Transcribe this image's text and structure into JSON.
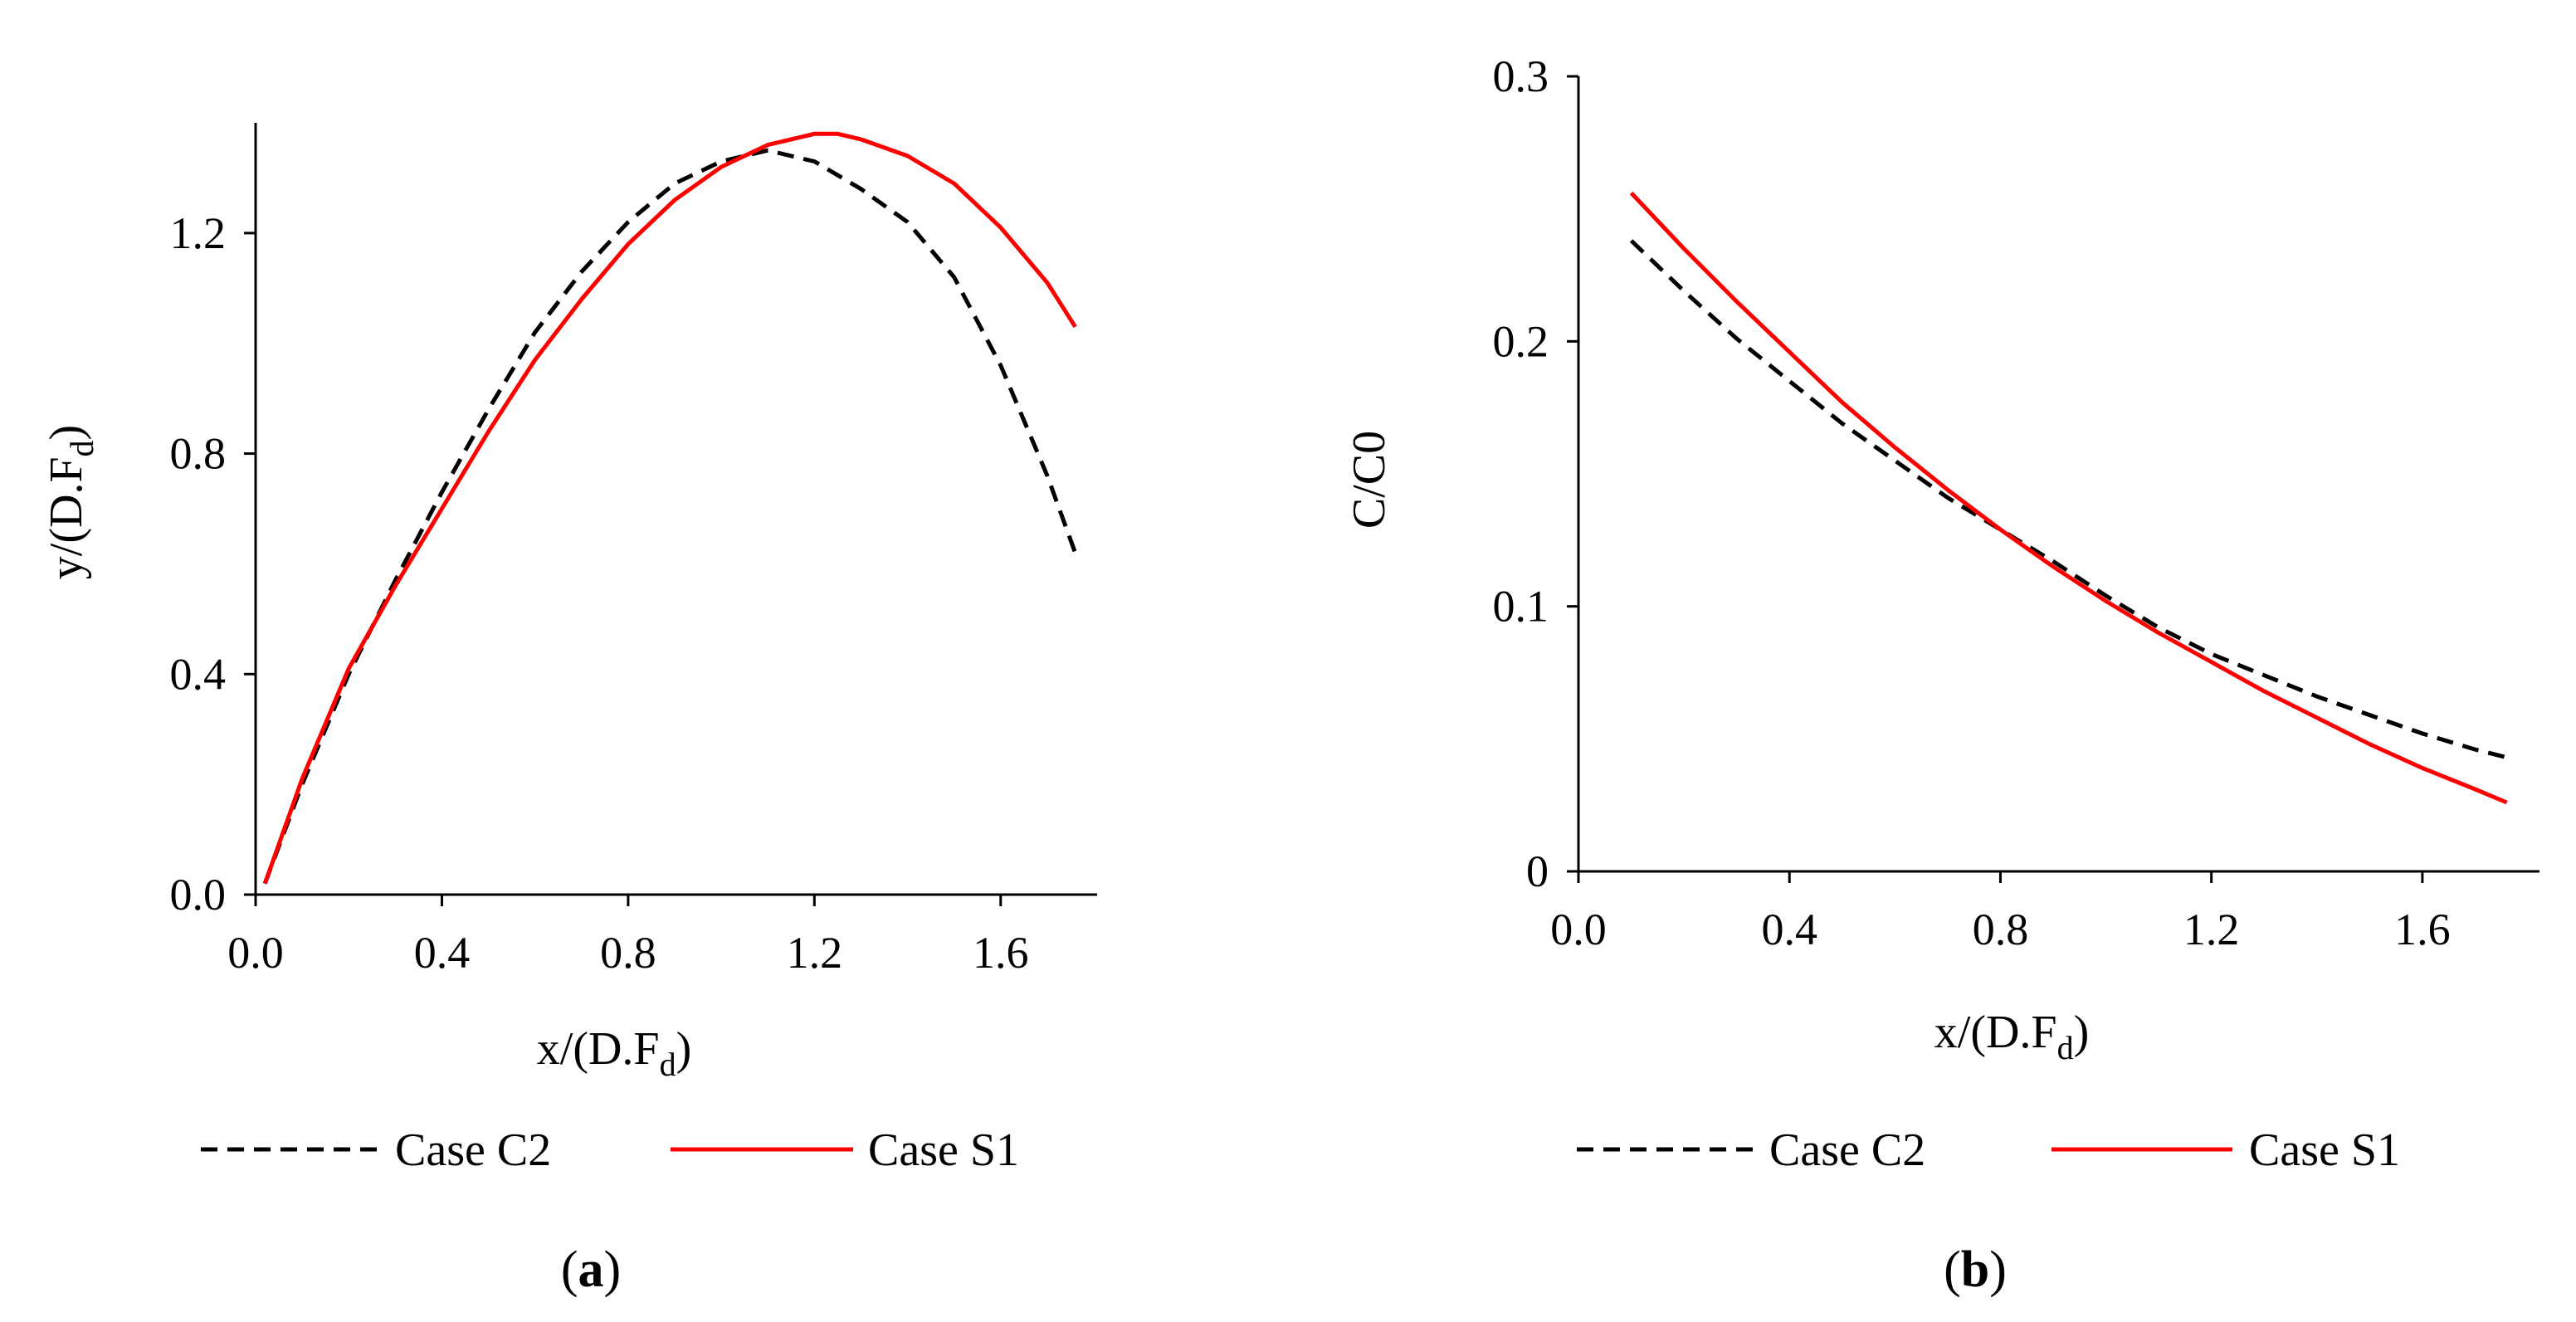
{
  "chart_data": [
    {
      "type": "line",
      "caption": "a",
      "xlabel": "x/(D.F",
      "xlabel_sub": "d",
      "xlabel_close": ")",
      "ylabel": "y/(D.F",
      "ylabel_sub": "d",
      "ylabel_close": ")",
      "xlim": [
        0.0,
        1.8
      ],
      "ylim": [
        0.0,
        1.4
      ],
      "x_ticks": [
        "0.0",
        "0.4",
        "0.8",
        "1.2",
        "1.6"
      ],
      "y_ticks": [
        "0.0",
        "0.4",
        "0.8",
        "1.2"
      ],
      "grid": false,
      "legend_placement": "bottom",
      "series": [
        {
          "name": "Case C2",
          "color": "#000000",
          "style": "dashed",
          "x": [
            0.02,
            0.1,
            0.2,
            0.3,
            0.4,
            0.5,
            0.6,
            0.7,
            0.8,
            0.9,
            1.0,
            1.05,
            1.1,
            1.15,
            1.2,
            1.3,
            1.4,
            1.5,
            1.6,
            1.7,
            1.76
          ],
          "y": [
            0.02,
            0.2,
            0.4,
            0.57,
            0.73,
            0.88,
            1.02,
            1.13,
            1.22,
            1.29,
            1.33,
            1.34,
            1.35,
            1.34,
            1.33,
            1.28,
            1.22,
            1.12,
            0.96,
            0.76,
            0.62
          ]
        },
        {
          "name": "Case S1",
          "color": "#ff0000",
          "style": "solid",
          "x": [
            0.02,
            0.1,
            0.2,
            0.3,
            0.4,
            0.5,
            0.6,
            0.7,
            0.8,
            0.9,
            1.0,
            1.1,
            1.15,
            1.2,
            1.25,
            1.3,
            1.4,
            1.5,
            1.6,
            1.7,
            1.76
          ],
          "y": [
            0.02,
            0.21,
            0.41,
            0.56,
            0.7,
            0.84,
            0.97,
            1.08,
            1.18,
            1.26,
            1.32,
            1.36,
            1.37,
            1.38,
            1.38,
            1.37,
            1.34,
            1.29,
            1.21,
            1.11,
            1.03
          ]
        }
      ]
    },
    {
      "type": "line",
      "caption": "b",
      "xlabel": "x/(D.F",
      "xlabel_sub": "d",
      "xlabel_close": ")",
      "ylabel": "C/C0",
      "xlim": [
        0.0,
        1.8
      ],
      "ylim": [
        0,
        0.3
      ],
      "x_ticks": [
        "0.0",
        "0.4",
        "0.8",
        "1.2",
        "1.6"
      ],
      "y_ticks": [
        "0",
        "0.1",
        "0.2",
        "0.3"
      ],
      "grid": false,
      "legend_placement": "bottom",
      "series": [
        {
          "name": "Case C2",
          "color": "#000000",
          "style": "dashed",
          "x": [
            0.1,
            0.2,
            0.3,
            0.4,
            0.5,
            0.6,
            0.7,
            0.8,
            0.9,
            1.0,
            1.1,
            1.2,
            1.3,
            1.4,
            1.5,
            1.6,
            1.7,
            1.76
          ],
          "y": [
            0.238,
            0.219,
            0.201,
            0.185,
            0.169,
            0.155,
            0.141,
            0.129,
            0.117,
            0.104,
            0.092,
            0.082,
            0.074,
            0.066,
            0.059,
            0.052,
            0.046,
            0.043
          ]
        },
        {
          "name": "Case S1",
          "color": "#ff0000",
          "style": "solid",
          "x": [
            0.1,
            0.2,
            0.3,
            0.4,
            0.5,
            0.6,
            0.7,
            0.8,
            0.9,
            1.0,
            1.1,
            1.2,
            1.3,
            1.4,
            1.5,
            1.6,
            1.7,
            1.76
          ],
          "y": [
            0.256,
            0.235,
            0.215,
            0.196,
            0.177,
            0.16,
            0.144,
            0.129,
            0.115,
            0.102,
            0.09,
            0.079,
            0.068,
            0.058,
            0.048,
            0.039,
            0.031,
            0.026
          ]
        }
      ]
    }
  ]
}
